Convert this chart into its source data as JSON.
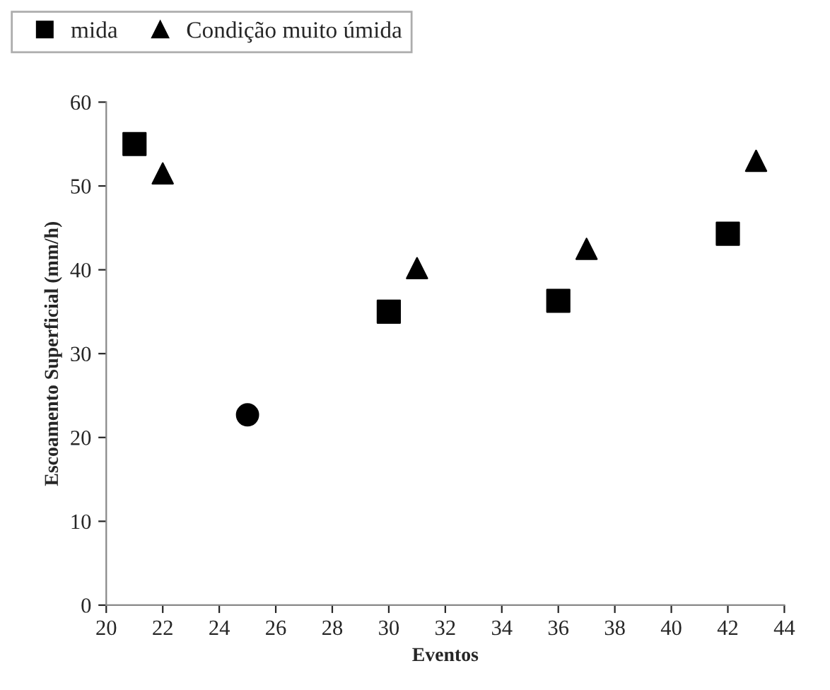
{
  "chart_data": {
    "type": "scatter",
    "xlabel": "Eventos",
    "ylabel": "Escoamento Superficial (mm/h)",
    "xlim": [
      20,
      44
    ],
    "xticks": [
      20,
      22,
      24,
      26,
      28,
      30,
      32,
      34,
      36,
      38,
      40,
      42,
      44
    ],
    "ylim": [
      0,
      60
    ],
    "yticks": [
      0,
      10,
      20,
      30,
      40,
      50,
      60
    ],
    "grid": false,
    "legend": "top left",
    "series": [
      {
        "color": "#000000",
        "marker": "circle",
        "x": [
          25
        ],
        "values": [
          22.7
        ]
      },
      {
        "name": "mida",
        "color": "#000000",
        "marker": "square",
        "x": [
          21,
          30,
          36,
          42
        ],
        "values": [
          55,
          35,
          36.3,
          44.3
        ]
      },
      {
        "name": "Condição muito úmida",
        "color": "#000000",
        "marker": "triangle",
        "x": [
          22,
          31,
          37,
          43
        ],
        "values": [
          51.5,
          40.2,
          42.5,
          53
        ]
      }
    ]
  }
}
